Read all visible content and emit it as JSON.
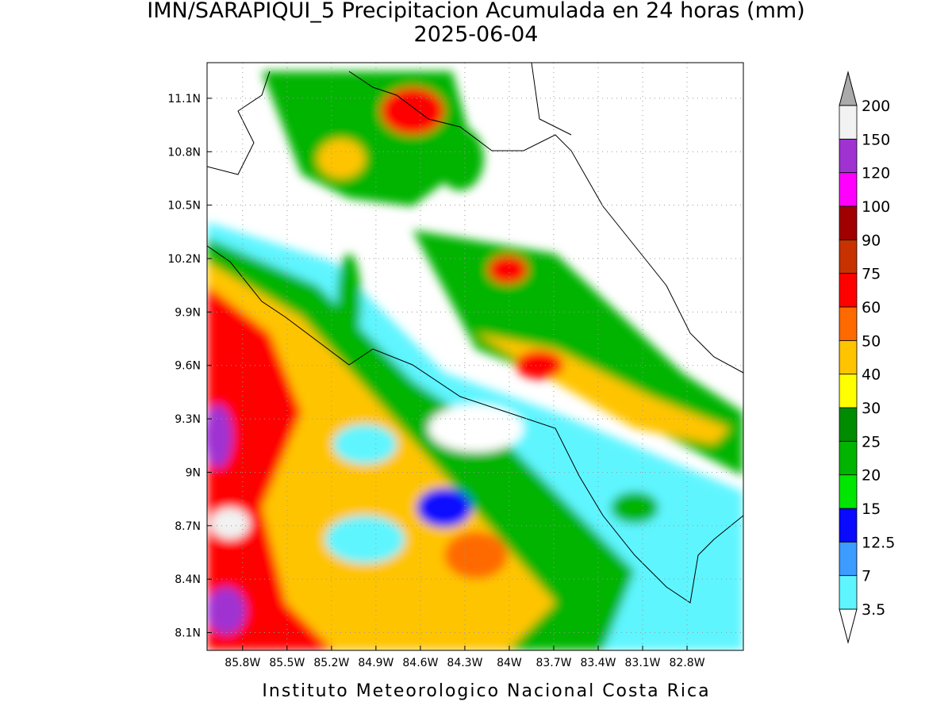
{
  "title": "IMN/SARAPIQUI_5 Precipitacion Acumulada en 24 horas (mm)",
  "subtitle": "2025-06-04",
  "footer": "Instituto Meteorologico Nacional Costa Rica",
  "map": {
    "xlim": [
      -86.04,
      -82.42
    ],
    "ylim": [
      8.0,
      11.3
    ],
    "grid": true,
    "xticks": [
      {
        "value": -85.8,
        "label": "85.8W"
      },
      {
        "value": -85.5,
        "label": "85.5W"
      },
      {
        "value": -85.2,
        "label": "85.2W"
      },
      {
        "value": -84.9,
        "label": "84.9W"
      },
      {
        "value": -84.6,
        "label": "84.6W"
      },
      {
        "value": -84.3,
        "label": "84.3W"
      },
      {
        "value": -84,
        "label": "84W"
      },
      {
        "value": -83.7,
        "label": "83.7W"
      },
      {
        "value": -83.4,
        "label": "83.4W"
      },
      {
        "value": -83.1,
        "label": "83.1W"
      },
      {
        "value": -82.8,
        "label": "82.8W"
      }
    ],
    "yticks": [
      {
        "value": 8.1,
        "label": "8.1N"
      },
      {
        "value": 8.4,
        "label": "8.4N"
      },
      {
        "value": 8.7,
        "label": "8.7N"
      },
      {
        "value": 9,
        "label": "9N"
      },
      {
        "value": 9.3,
        "label": "9.3N"
      },
      {
        "value": 9.6,
        "label": "9.6N"
      },
      {
        "value": 9.9,
        "label": "9.9N"
      },
      {
        "value": 10.2,
        "label": "10.2N"
      },
      {
        "value": 10.5,
        "label": "10.5N"
      },
      {
        "value": 10.8,
        "label": "10.8N"
      },
      {
        "value": 11.1,
        "label": "11.1N"
      }
    ]
  },
  "colorbar": {
    "levels": [
      3.5,
      7,
      12.5,
      15,
      20,
      25,
      30,
      40,
      50,
      60,
      75,
      90,
      100,
      120,
      150,
      200
    ],
    "colors": [
      "#ffffff",
      "#5ff5ff",
      "#3c9cff",
      "#0a0aff",
      "#00e600",
      "#00b400",
      "#008c00",
      "#ffff00",
      "#ffc400",
      "#ff6a00",
      "#ff0000",
      "#c83200",
      "#a00000",
      "#ff00ff",
      "#a032d2",
      "#f2f2f2",
      "#aaaaaa"
    ]
  }
}
